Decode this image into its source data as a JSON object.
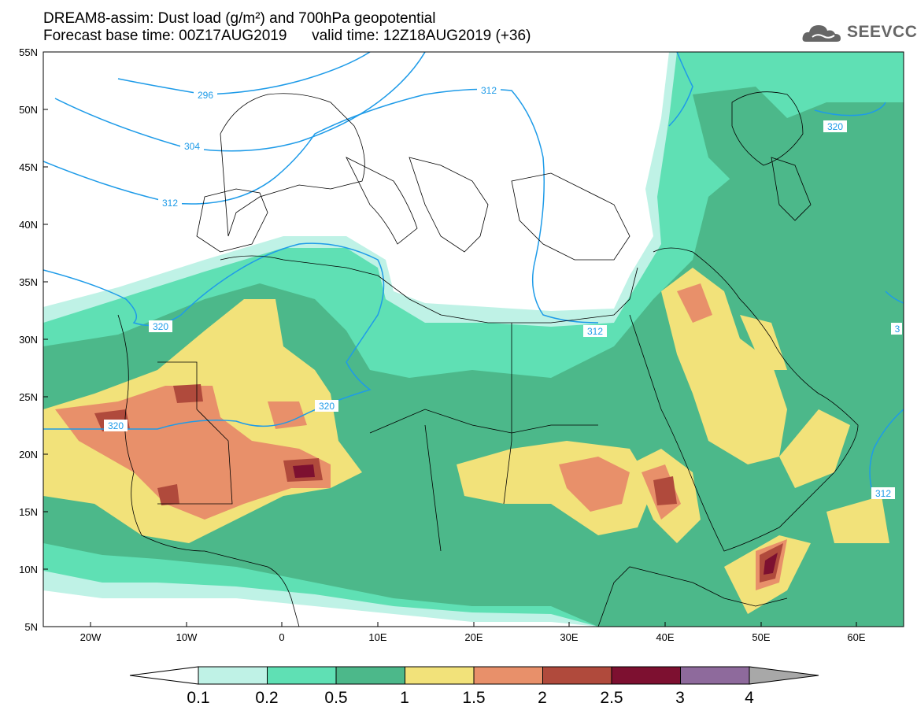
{
  "title": {
    "line1": "DREAM8-assim: Dust load (g/m²) and 700hPa geopotential",
    "line2": "Forecast base time: 00Z17AUG2019      valid time: 12Z18AUG2019 (+36)"
  },
  "logo": {
    "text": "SEEVCCC",
    "icon": "cloud-logo-icon"
  },
  "map": {
    "lat_labels": [
      "55N",
      "50N",
      "45N",
      "40N",
      "35N",
      "30N",
      "25N",
      "20N",
      "15N",
      "10N",
      "5N"
    ],
    "lon_labels": [
      "20W",
      "10W",
      "0",
      "10E",
      "20E",
      "30E",
      "40E",
      "50E",
      "60E"
    ],
    "contour_labels": [
      {
        "id": "c296",
        "text": "296"
      },
      {
        "id": "c304",
        "text": "304"
      },
      {
        "id": "c312a",
        "text": "312"
      },
      {
        "id": "c312b",
        "text": "312"
      },
      {
        "id": "c312c",
        "text": "312"
      },
      {
        "id": "c312d",
        "text": "312"
      },
      {
        "id": "c320a",
        "text": "320"
      },
      {
        "id": "c320b",
        "text": "320"
      },
      {
        "id": "c320c",
        "text": "320"
      },
      {
        "id": "c320d",
        "text": "320"
      },
      {
        "id": "c3e",
        "text": "3"
      }
    ]
  },
  "colors": {
    "ocean_land": "#ffffff",
    "level_0_1": "#bff2e6",
    "level_0_2": "#5fe0b4",
    "level_0_5": "#4cb88a",
    "level_1": "#f2e27a",
    "level_1_5": "#e8906a",
    "level_2": "#b04a3c",
    "level_2_5": "#7d1030",
    "level_3": "#8e6a9c",
    "level_4": "#a8a8a8",
    "contour": "#1e9be8"
  },
  "colorbar": {
    "labels": [
      "0.1",
      "0.2",
      "0.5",
      "1",
      "1.5",
      "2",
      "2.5",
      "3",
      "4"
    ],
    "swatches": [
      "#bff2e6",
      "#5fe0b4",
      "#4cb88a",
      "#f2e27a",
      "#e8906a",
      "#b04a3c",
      "#7d1030",
      "#8e6a9c"
    ]
  }
}
